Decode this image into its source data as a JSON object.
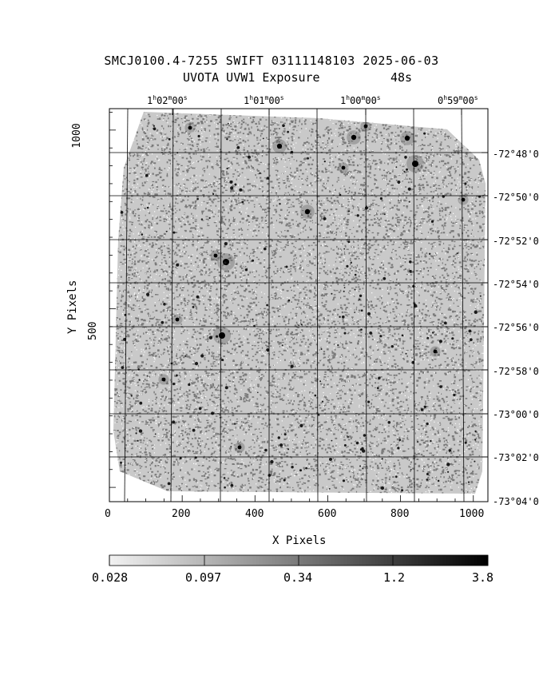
{
  "title": {
    "line1": "SMCJ0100.4-7255 SWIFT 03111148103 2025-06-03",
    "instrument": "UVOTA UVW1 Exposure",
    "exposure": "48s"
  },
  "axes": {
    "xlabel": "X Pixels",
    "ylabel": "Y Pixels",
    "x_ticks": [
      "0",
      "200",
      "400",
      "600",
      "800",
      "1000"
    ],
    "y_ticks": [
      "1000",
      "500"
    ],
    "x_range": [
      0,
      1040
    ],
    "y_range": [
      -40,
      1060
    ]
  },
  "ra_labels": [
    {
      "h": "1",
      "m": "02",
      "s": "00"
    },
    {
      "h": "1",
      "m": "01",
      "s": "00"
    },
    {
      "h": "1",
      "m": "00",
      "s": "00"
    },
    {
      "h": "0",
      "m": "59",
      "s": "00"
    }
  ],
  "dec_labels": [
    "-72°48'0",
    "-72°50'0",
    "-72°52'0",
    "-72°54'0",
    "-72°56'0",
    "-72°58'0",
    "-73°00'0",
    "-73°02'0",
    "-73°04'0"
  ],
  "colorbar": {
    "labels": [
      "0.028",
      "0.097",
      "0.34",
      "1.2",
      "3.8"
    ],
    "colors": {
      "low": "#f2f2f2",
      "high": "#000000"
    }
  },
  "colors": {
    "background": "#ffffff",
    "grid": "#000000",
    "pixels": "#7a7a7a"
  }
}
